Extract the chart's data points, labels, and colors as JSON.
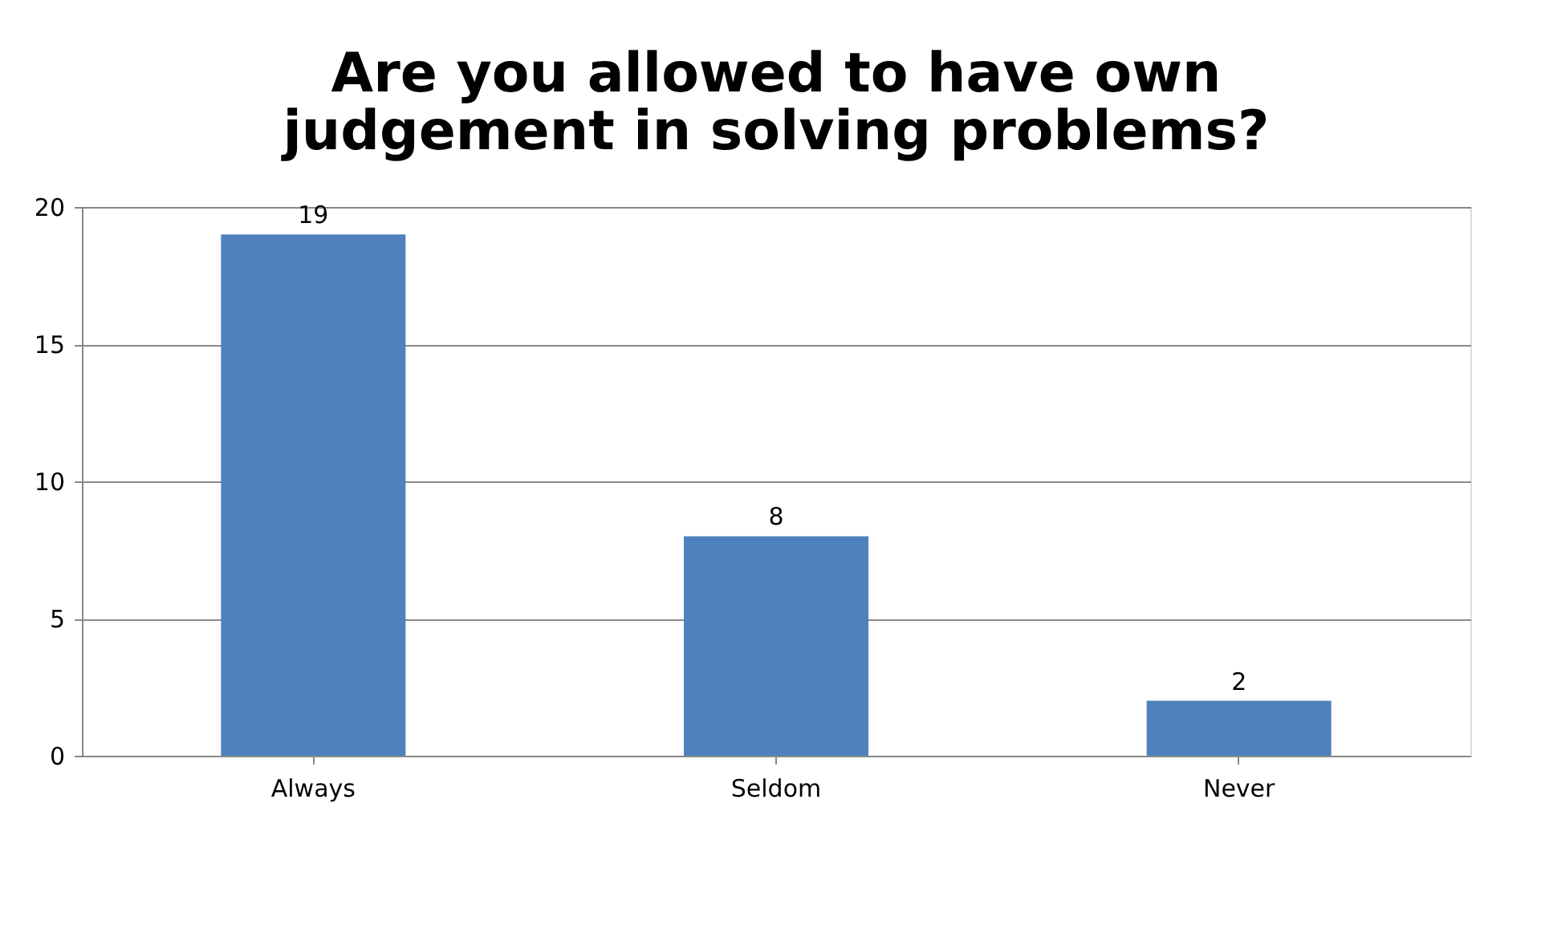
{
  "chart_data": {
    "type": "bar",
    "title": "Are you allowed to have own judgement in solving problems?",
    "categories": [
      "Always",
      "Seldom",
      "Never"
    ],
    "values": [
      19,
      8,
      2
    ],
    "color": "#4f81bd",
    "ylim": [
      0,
      20
    ],
    "yticks": [
      0,
      5,
      10,
      15,
      20
    ],
    "grid": "y",
    "data_labels": true
  }
}
